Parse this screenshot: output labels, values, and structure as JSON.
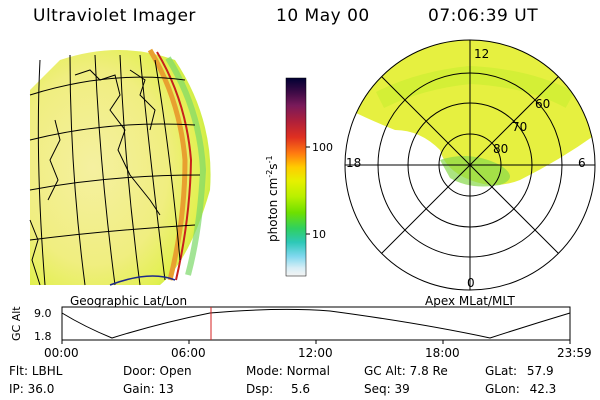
{
  "header": {
    "instrument": "Ultraviolet Imager",
    "date": "10 May 00",
    "time": "07:06:39 UT"
  },
  "colorbar": {
    "unit_label": "photon cm",
    "unit_exp1": "-2",
    "unit_s": "s",
    "unit_exp2": "-1",
    "tick_100": "100",
    "tick_10": "10",
    "colors": [
      "#000033",
      "#3b0a45",
      "#7a1a5a",
      "#b0203a",
      "#e03020",
      "#ff7a10",
      "#ffcc00",
      "#e6f000",
      "#b8f000",
      "#6ee000",
      "#2fd060",
      "#2ec8b8",
      "#7fd8ee",
      "#d8eef6",
      "#f4f4f4"
    ]
  },
  "map_left": {
    "caption": "Geographic Lat/Lon"
  },
  "polar": {
    "caption": "Apex MLat/MLT",
    "mlt_top": "12",
    "mlt_left": "18",
    "mlt_right": "6",
    "mlt_bottom": "0",
    "lat_60": "60",
    "lat_70": "70",
    "lat_80": "80"
  },
  "altitude_plot": {
    "ylabel": "GC Alt",
    "ytick_top": "9.0",
    "ytick_bottom": "1.8",
    "xticks": [
      "00:00",
      "06:00",
      "12:00",
      "18:00",
      "23:59"
    ],
    "current_time_marker": "07:06:39",
    "line_color": "#d42020"
  },
  "status": {
    "flt_label": "Flt:",
    "flt_value": "LBHL",
    "ip_label": "IP:",
    "ip_value": "36.0",
    "door_label": "Door:",
    "door_value": "Open",
    "gain_label": "Gain:",
    "gain_value": "13",
    "mode_label": "Mode:",
    "mode_value": "Normal",
    "dsp_label": "Dsp:",
    "dsp_value": "5.6",
    "gcalt_label": "GC Alt:",
    "gcalt_value": "7.8 Re",
    "seq_label": "Seq:",
    "seq_value": "39",
    "glat_label": "GLat:",
    "glat_value": "57.9",
    "glon_label": "GLon:",
    "glon_value": "42.3"
  }
}
